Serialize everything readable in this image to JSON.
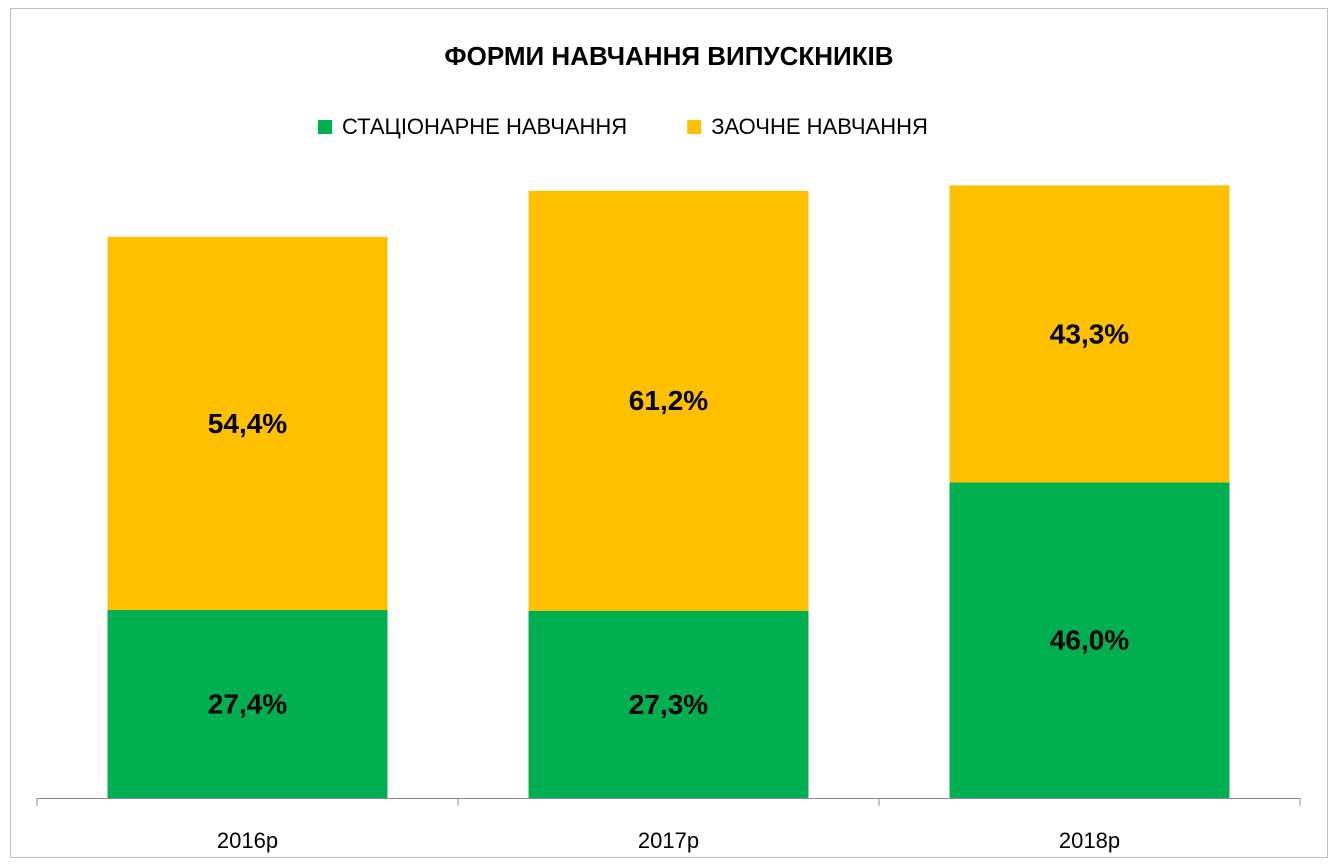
{
  "chart_data": {
    "type": "stacked_bar",
    "title": "ФОРМИ НАВЧАННЯ ВИПУСКНИКІВ",
    "categories": [
      "2016р",
      "2017р",
      "2018р"
    ],
    "series": [
      {
        "name": "СТАЦІОНАРНЕ НАВЧАННЯ",
        "color": "#00b050",
        "values": [
          27.4,
          27.3,
          46.0
        ],
        "value_labels": [
          "27,4%",
          "27,3%",
          "46,0%"
        ]
      },
      {
        "name": "ЗАОЧНЕ НАВЧАННЯ",
        "color": "#ffc000",
        "values": [
          54.4,
          61.2,
          43.3
        ],
        "value_labels": [
          "54,4%",
          "61,2%",
          "43,3%"
        ]
      }
    ],
    "ylim": [
      0,
      90
    ],
    "legend": "top"
  }
}
